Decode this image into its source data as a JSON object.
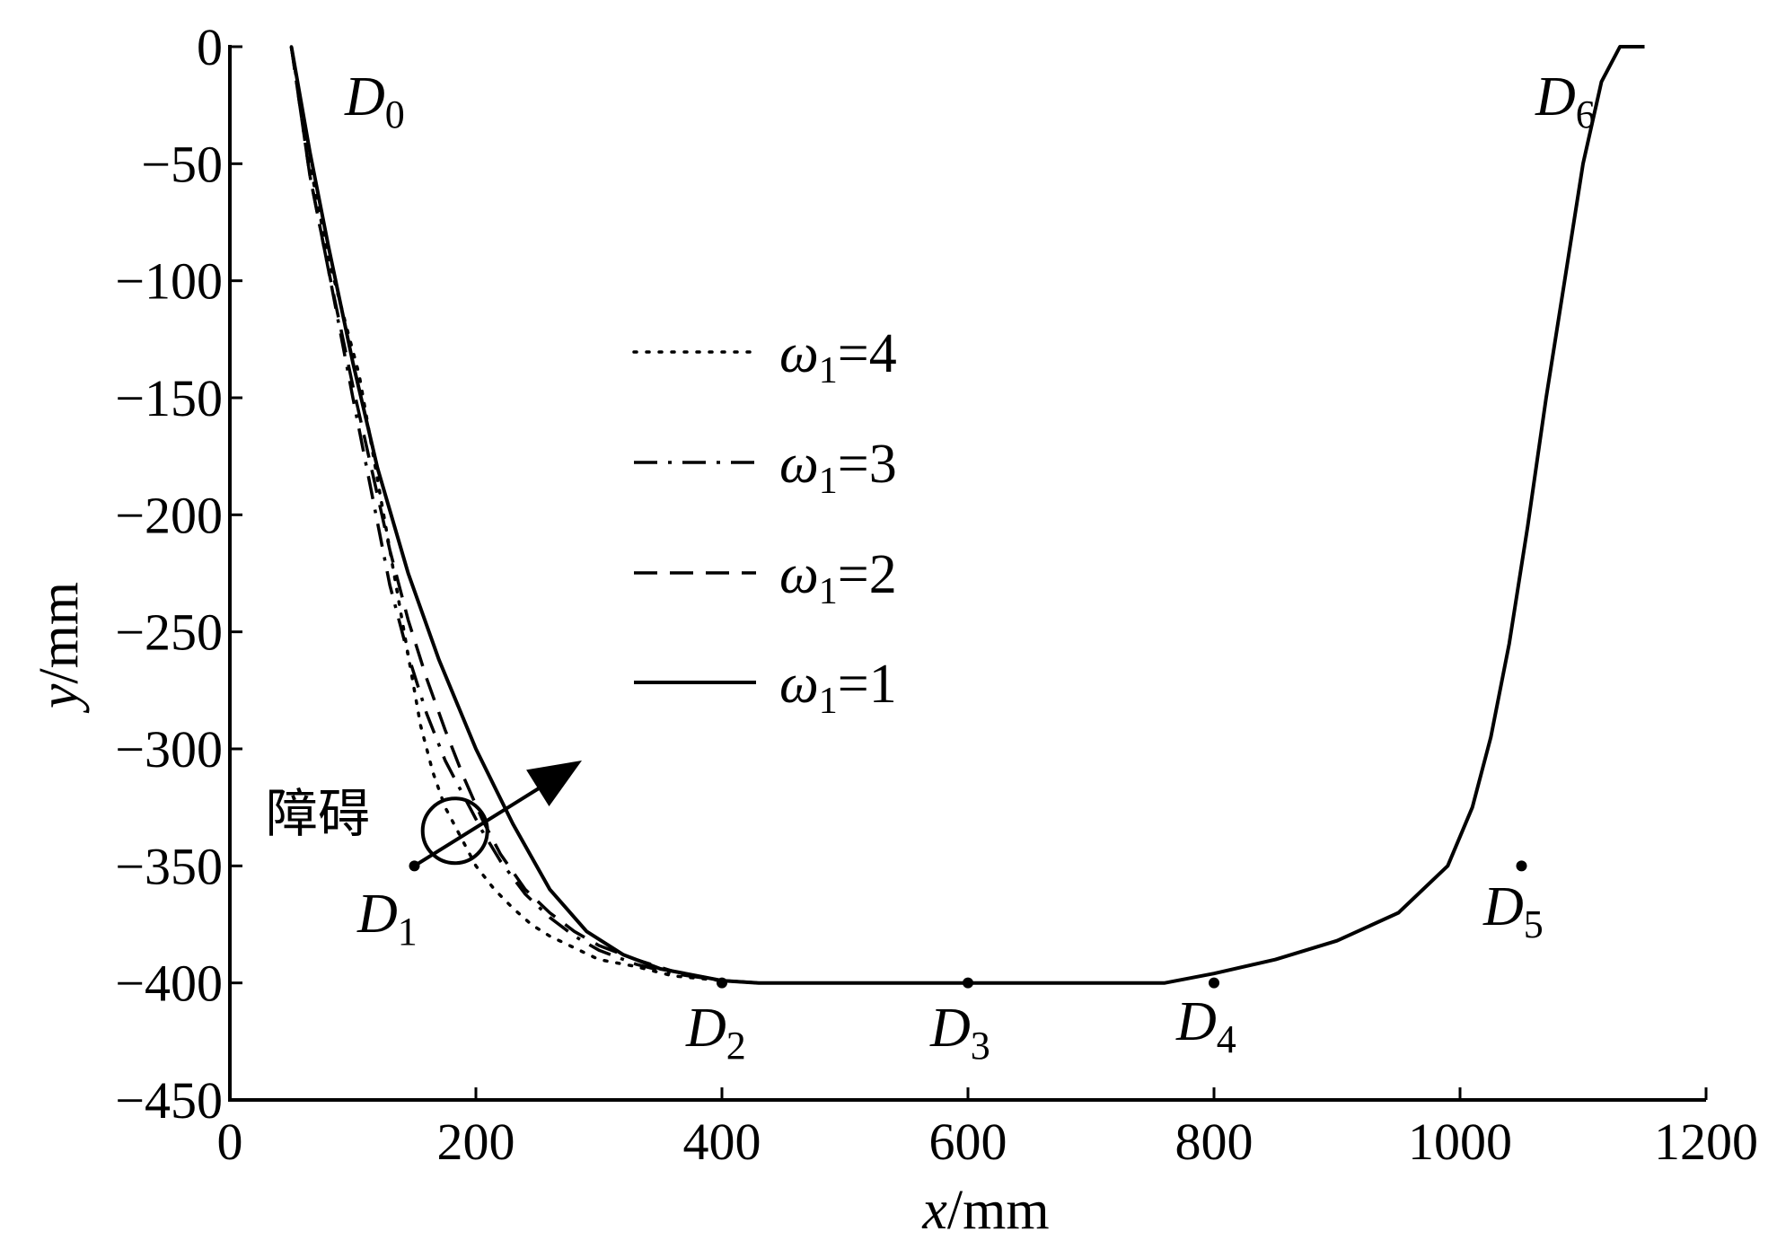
{
  "chart_data": {
    "type": "line",
    "xlabel": {
      "var": "x",
      "unit": "/mm"
    },
    "ylabel": {
      "var": "y",
      "unit": "/mm"
    },
    "xlim": [
      0,
      1200
    ],
    "ylim": [
      -450,
      0
    ],
    "xticks": [
      0,
      200,
      400,
      600,
      800,
      1000,
      1200
    ],
    "yticks": [
      0,
      -50,
      -100,
      -150,
      -200,
      -250,
      -300,
      -350,
      -400,
      -450
    ],
    "tick_labels_x": [
      "0",
      "200",
      "400",
      "600",
      "800",
      "1000",
      "1200"
    ],
    "tick_labels_y": [
      "0",
      "−50",
      "−100",
      "−150",
      "−200",
      "−250",
      "−300",
      "−350",
      "−400",
      "−450"
    ],
    "grid": false,
    "legend_placement": "center-left",
    "series": [
      {
        "name": "ω1=4",
        "sym": "ω",
        "sub": "1",
        "val": "=4",
        "style": "dotted",
        "x": [
          50,
          65,
          80,
          95,
          105,
          115,
          125,
          135,
          145,
          155,
          165,
          175,
          185,
          200,
          215,
          230,
          245,
          260,
          280,
          300,
          330,
          360,
          400,
          430
        ],
        "y": [
          0,
          -50,
          -90,
          -120,
          -140,
          -170,
          -200,
          -230,
          -260,
          -290,
          -310,
          -325,
          -335,
          -350,
          -360,
          -368,
          -375,
          -380,
          -385,
          -390,
          -393,
          -397,
          -399,
          -400
        ]
      },
      {
        "name": "ω1=3",
        "sym": "ω",
        "sub": "1",
        "val": "=3",
        "style": "dashdot",
        "x": [
          50,
          65,
          80,
          100,
          115,
          130,
          145,
          160,
          175,
          190,
          205,
          220,
          240,
          260,
          280,
          300,
          330,
          360,
          400,
          430
        ],
        "y": [
          0,
          -55,
          -95,
          -150,
          -190,
          -230,
          -260,
          -285,
          -305,
          -320,
          -335,
          -348,
          -362,
          -372,
          -380,
          -386,
          -392,
          -396,
          -399,
          -400
        ]
      },
      {
        "name": "ω1=2",
        "sym": "ω",
        "sub": "1",
        "val": "=2",
        "style": "dashed",
        "x": [
          50,
          65,
          80,
          100,
          115,
          130,
          145,
          160,
          175,
          190,
          205,
          220,
          240,
          260,
          280,
          300,
          330,
          360,
          400,
          430
        ],
        "y": [
          0,
          -55,
          -95,
          -145,
          -180,
          -215,
          -245,
          -270,
          -292,
          -312,
          -330,
          -345,
          -360,
          -370,
          -378,
          -384,
          -390,
          -395,
          -399,
          -400
        ]
      },
      {
        "name": "ω1=1",
        "sym": "ω",
        "sub": "1",
        "val": "=1",
        "style": "solid",
        "x": [
          50,
          65,
          80,
          100,
          120,
          145,
          170,
          200,
          230,
          260,
          290,
          320,
          350,
          380,
          400,
          430,
          500,
          600,
          700,
          760,
          800,
          850,
          900,
          950,
          990,
          1010,
          1025,
          1040,
          1055,
          1070,
          1085,
          1100,
          1115,
          1130,
          1150
        ],
        "y": [
          0,
          -45,
          -85,
          -135,
          -180,
          -225,
          -262,
          -300,
          -332,
          -360,
          -378,
          -388,
          -394,
          -397,
          -399,
          -400,
          -400,
          -400,
          -400,
          -400,
          -396,
          -390,
          -382,
          -370,
          -350,
          -325,
          -295,
          -255,
          -205,
          -150,
          -100,
          -50,
          -15,
          0,
          0
        ]
      }
    ],
    "points": [
      {
        "label": "D",
        "sub": "0",
        "x": null,
        "y": 0,
        "marker": false
      },
      {
        "label": "D",
        "sub": "1",
        "x": 150,
        "y": -350,
        "marker": true
      },
      {
        "label": "D",
        "sub": "2",
        "x": 400,
        "y": -400,
        "marker": true
      },
      {
        "label": "D",
        "sub": "3",
        "x": 600,
        "y": -400,
        "marker": true
      },
      {
        "label": "D",
        "sub": "4",
        "x": 800,
        "y": -400,
        "marker": true
      },
      {
        "label": "D",
        "sub": "5",
        "x": 1050,
        "y": -350,
        "marker": true
      },
      {
        "label": "D",
        "sub": "6",
        "x": 1150,
        "y": 0,
        "marker": false
      }
    ],
    "annotation": {
      "text": "障碍",
      "center_x": 183,
      "center_y": -335
    }
  }
}
